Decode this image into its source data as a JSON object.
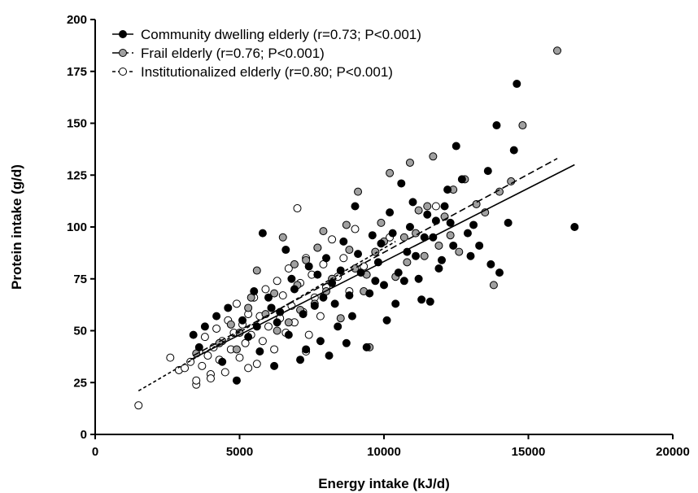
{
  "chart_data": {
    "type": "scatter",
    "xlabel": "Energy intake (kJ/d)",
    "ylabel": "Protein intake (g/d)",
    "xlim": [
      0,
      20000
    ],
    "ylim": [
      0,
      200
    ],
    "x_ticks": [
      "0",
      "5000",
      "10000",
      "15000",
      "20000"
    ],
    "y_ticks": [
      "0",
      "25",
      "50",
      "75",
      "100",
      "125",
      "150",
      "175",
      "200"
    ],
    "grid": false,
    "legend_position": "top-left",
    "series": [
      {
        "name": "Community dwelling elderly (r=0.73; P<0.001)",
        "marker_fill": "#000000",
        "line_style": "solid",
        "fit_line": {
          "x": [
            3300,
            16600
          ],
          "y": [
            36,
            130
          ]
        },
        "points": [
          [
            4200,
            57
          ],
          [
            4600,
            61
          ],
          [
            4900,
            26
          ],
          [
            5300,
            47
          ],
          [
            5600,
            52
          ],
          [
            5800,
            97
          ],
          [
            6000,
            66
          ],
          [
            6200,
            33
          ],
          [
            6400,
            59
          ],
          [
            6700,
            48
          ],
          [
            6900,
            70
          ],
          [
            7100,
            36
          ],
          [
            7400,
            81
          ],
          [
            7600,
            62
          ],
          [
            7800,
            45
          ],
          [
            8000,
            85
          ],
          [
            8200,
            73
          ],
          [
            8400,
            52
          ],
          [
            8600,
            93
          ],
          [
            8800,
            67
          ],
          [
            9000,
            110
          ],
          [
            9200,
            78
          ],
          [
            9400,
            42
          ],
          [
            9600,
            96
          ],
          [
            9800,
            83
          ],
          [
            10000,
            72
          ],
          [
            10200,
            107
          ],
          [
            10400,
            63
          ],
          [
            10600,
            121
          ],
          [
            10800,
            88
          ],
          [
            11000,
            112
          ],
          [
            11200,
            75
          ],
          [
            11400,
            95
          ],
          [
            11600,
            64
          ],
          [
            11800,
            103
          ],
          [
            12000,
            84
          ],
          [
            12200,
            118
          ],
          [
            12500,
            139
          ],
          [
            12700,
            123
          ],
          [
            12900,
            97
          ],
          [
            13100,
            101
          ],
          [
            13300,
            91
          ],
          [
            13600,
            127
          ],
          [
            13700,
            82
          ],
          [
            13900,
            149
          ],
          [
            14000,
            78
          ],
          [
            14300,
            102
          ],
          [
            14500,
            137
          ],
          [
            14600,
            169
          ],
          [
            16600,
            100
          ],
          [
            3400,
            48
          ],
          [
            3600,
            42
          ],
          [
            3800,
            52
          ],
          [
            5100,
            55
          ],
          [
            5500,
            69
          ],
          [
            6600,
            89
          ],
          [
            7200,
            58
          ],
          [
            7700,
            77
          ],
          [
            8300,
            63
          ],
          [
            8900,
            57
          ],
          [
            9500,
            68
          ],
          [
            10100,
            55
          ],
          [
            10700,
            74
          ],
          [
            11300,
            65
          ],
          [
            11900,
            80
          ],
          [
            12400,
            91
          ],
          [
            13000,
            86
          ],
          [
            8100,
            38
          ],
          [
            8700,
            44
          ],
          [
            9900,
            92
          ],
          [
            10300,
            97
          ],
          [
            10900,
            100
          ],
          [
            11500,
            106
          ],
          [
            12100,
            110
          ],
          [
            7300,
            41
          ],
          [
            6300,
            54
          ],
          [
            5700,
            40
          ],
          [
            4400,
            35
          ],
          [
            9100,
            87
          ],
          [
            9700,
            74
          ],
          [
            10500,
            78
          ],
          [
            11100,
            86
          ],
          [
            11700,
            95
          ],
          [
            12300,
            102
          ],
          [
            7900,
            66
          ],
          [
            8500,
            79
          ],
          [
            6100,
            61
          ],
          [
            6800,
            75
          ]
        ]
      },
      {
        "name": "Frail elderly (r=0.76; P<0.001)",
        "marker_fill": "#a0a0a0",
        "line_style": "dashed",
        "fit_line": {
          "x": [
            3400,
            16000
          ],
          "y": [
            38,
            133
          ]
        },
        "points": [
          [
            4300,
            44
          ],
          [
            4700,
            53
          ],
          [
            5000,
            49
          ],
          [
            5300,
            61
          ],
          [
            5600,
            79
          ],
          [
            5900,
            58
          ],
          [
            6200,
            68
          ],
          [
            6500,
            95
          ],
          [
            6700,
            54
          ],
          [
            7000,
            72
          ],
          [
            7300,
            84
          ],
          [
            7600,
            63
          ],
          [
            7900,
            98
          ],
          [
            8200,
            75
          ],
          [
            8500,
            56
          ],
          [
            8800,
            89
          ],
          [
            9100,
            117
          ],
          [
            9300,
            69
          ],
          [
            9500,
            42
          ],
          [
            9700,
            88
          ],
          [
            9900,
            102
          ],
          [
            10200,
            126
          ],
          [
            10400,
            76
          ],
          [
            10700,
            95
          ],
          [
            10900,
            131
          ],
          [
            11200,
            108
          ],
          [
            11400,
            86
          ],
          [
            11700,
            134
          ],
          [
            11900,
            91
          ],
          [
            12100,
            105
          ],
          [
            12400,
            118
          ],
          [
            12600,
            88
          ],
          [
            12800,
            123
          ],
          [
            13200,
            111
          ],
          [
            13500,
            107
          ],
          [
            13800,
            72
          ],
          [
            14000,
            117
          ],
          [
            14400,
            122
          ],
          [
            14800,
            149
          ],
          [
            16000,
            185
          ],
          [
            11500,
            110
          ],
          [
            9000,
            80
          ],
          [
            8000,
            69
          ],
          [
            7100,
            60
          ],
          [
            6300,
            50
          ],
          [
            5400,
            66
          ],
          [
            4900,
            41
          ],
          [
            3500,
            39
          ],
          [
            8700,
            101
          ],
          [
            10000,
            93
          ],
          [
            10800,
            83
          ],
          [
            11100,
            97
          ],
          [
            12300,
            96
          ],
          [
            9400,
            77
          ],
          [
            7700,
            90
          ],
          [
            6900,
            82
          ]
        ]
      },
      {
        "name": "Institutionalized elderly (r=0.80; P<0.001)",
        "marker_fill": "#ffffff",
        "line_style": "dotted",
        "fit_line": {
          "x": [
            1500,
            10400
          ],
          "y": [
            21,
            93
          ]
        },
        "points": [
          [
            1500,
            14
          ],
          [
            2600,
            37
          ],
          [
            2900,
            31
          ],
          [
            3100,
            32
          ],
          [
            3300,
            35
          ],
          [
            3500,
            24
          ],
          [
            3600,
            40
          ],
          [
            3700,
            33
          ],
          [
            3800,
            47
          ],
          [
            3900,
            38
          ],
          [
            4000,
            29
          ],
          [
            4100,
            42
          ],
          [
            4200,
            51
          ],
          [
            4300,
            36
          ],
          [
            4400,
            45
          ],
          [
            4500,
            30
          ],
          [
            4600,
            55
          ],
          [
            4700,
            41
          ],
          [
            4800,
            49
          ],
          [
            4900,
            63
          ],
          [
            5000,
            37
          ],
          [
            5100,
            53
          ],
          [
            5200,
            44
          ],
          [
            5300,
            58
          ],
          [
            5400,
            48
          ],
          [
            5500,
            66
          ],
          [
            5600,
            34
          ],
          [
            5700,
            57
          ],
          [
            5800,
            45
          ],
          [
            5900,
            70
          ],
          [
            6000,
            52
          ],
          [
            6100,
            61
          ],
          [
            6200,
            41
          ],
          [
            6300,
            74
          ],
          [
            6400,
            56
          ],
          [
            6500,
            67
          ],
          [
            6600,
            49
          ],
          [
            6700,
            80
          ],
          [
            6800,
            62
          ],
          [
            6900,
            54
          ],
          [
            7000,
            109
          ],
          [
            7100,
            73
          ],
          [
            7200,
            59
          ],
          [
            7300,
            85
          ],
          [
            7400,
            48
          ],
          [
            7500,
            77
          ],
          [
            7600,
            66
          ],
          [
            7700,
            90
          ],
          [
            7800,
            57
          ],
          [
            7900,
            82
          ],
          [
            8000,
            71
          ],
          [
            8200,
            94
          ],
          [
            8400,
            76
          ],
          [
            8600,
            85
          ],
          [
            8800,
            69
          ],
          [
            9000,
            99
          ],
          [
            9300,
            81
          ],
          [
            9700,
            88
          ],
          [
            10200,
            95
          ],
          [
            11800,
            110
          ],
          [
            7300,
            40
          ],
          [
            5300,
            32
          ],
          [
            4000,
            27
          ],
          [
            3500,
            26
          ]
        ]
      }
    ]
  }
}
